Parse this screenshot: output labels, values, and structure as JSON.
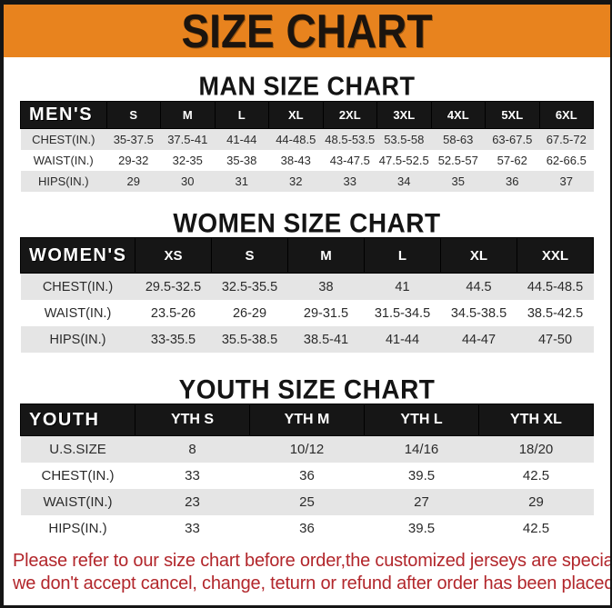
{
  "banner": {
    "title": "SIZE CHART"
  },
  "colors": {
    "banner_orange": "#E8831E",
    "header_black": "#161616",
    "row_gray": "#E5E5E5",
    "footer_red": "#B2262B"
  },
  "sections": [
    {
      "id": "men",
      "heading": "MAN SIZE CHART",
      "table": {
        "header": [
          "MEN'S",
          "S",
          "M",
          "L",
          "XL",
          "2XL",
          "3XL",
          "4XL",
          "5XL",
          "6XL"
        ],
        "rows": [
          [
            "CHEST(IN.)",
            "35-37.5",
            "37.5-41",
            "41-44",
            "44-48.5",
            "48.5-53.5",
            "53.5-58",
            "58-63",
            "63-67.5",
            "67.5-72"
          ],
          [
            "WAIST(IN.)",
            "29-32",
            "32-35",
            "35-38",
            "38-43",
            "43-47.5",
            "47.5-52.5",
            "52.5-57",
            "57-62",
            "62-66.5"
          ],
          [
            "HIPS(IN.)",
            "29",
            "30",
            "31",
            "32",
            "33",
            "34",
            "35",
            "36",
            "37"
          ]
        ]
      }
    },
    {
      "id": "women",
      "heading": "WOMEN SIZE CHART",
      "table": {
        "header": [
          "WOMEN'S",
          "XS",
          "S",
          "M",
          "L",
          "XL",
          "XXL"
        ],
        "rows": [
          [
            "CHEST(IN.)",
            "29.5-32.5",
            "32.5-35.5",
            "38",
            "41",
            "44.5",
            "44.5-48.5"
          ],
          [
            "WAIST(IN.)",
            "23.5-26",
            "26-29",
            "29-31.5",
            "31.5-34.5",
            "34.5-38.5",
            "38.5-42.5"
          ],
          [
            "HIPS(IN.)",
            "33-35.5",
            "35.5-38.5",
            "38.5-41",
            "41-44",
            "44-47",
            "47-50"
          ]
        ]
      }
    },
    {
      "id": "youth",
      "heading": "YOUTH SIZE CHART",
      "table": {
        "header": [
          "YOUTH",
          "YTH S",
          "YTH M",
          "YTH L",
          "YTH XL"
        ],
        "rows": [
          [
            "U.S.SIZE",
            "8",
            "10/12",
            "14/16",
            "18/20"
          ],
          [
            "CHEST(IN.)",
            "33",
            "36",
            "39.5",
            "42.5"
          ],
          [
            "WAIST(IN.)",
            "23",
            "25",
            "27",
            "29"
          ],
          [
            "HIPS(IN.)",
            "33",
            "36",
            "39.5",
            "42.5"
          ]
        ]
      }
    }
  ],
  "footer": {
    "line1": "Please refer to our size chart before order,the customized jerseys are special products,",
    "line2": "we don't accept cancel, change, teturn or refund after order has been placed!"
  }
}
